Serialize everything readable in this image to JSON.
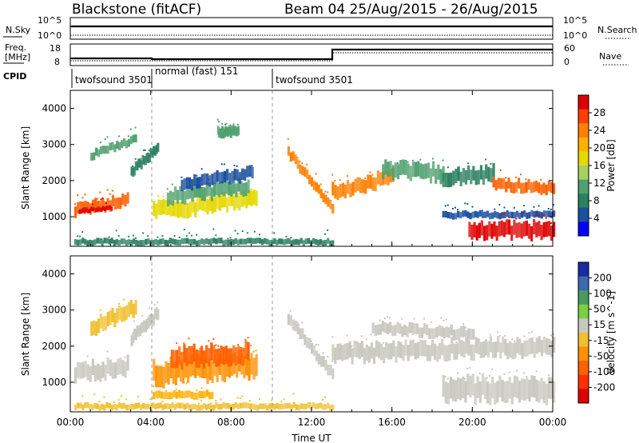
{
  "header": {
    "station": "Blackstone (fitACF)",
    "beam_dates": "Beam 04   25/Aug/2015 - 26/Aug/2015"
  },
  "noise_panel": {
    "left_label": "N.Sky",
    "right_label": "N.Search",
    "left_ticks": [
      "10^5",
      "10^0"
    ],
    "right_ticks": [
      "10^5",
      "10^0"
    ]
  },
  "freq_panel": {
    "left_label_1": "Freq.",
    "left_label_2": "[MHz]",
    "right_label": "Nave",
    "left_ticks": [
      "18",
      "8"
    ],
    "right_ticks": [
      "60",
      "0"
    ]
  },
  "cpid": {
    "label": "CPID",
    "segments": [
      {
        "name": "twofsound 3501",
        "start_hour": 0,
        "end_hour": 4
      },
      {
        "name": "normal (fast) 151",
        "start_hour": 4,
        "end_hour": 10
      },
      {
        "name": "twofsound 3501",
        "start_hour": 10,
        "end_hour": 24
      }
    ]
  },
  "colorbars": {
    "power": {
      "label": "Power [dB]",
      "ticks": [
        "28",
        "24",
        "20",
        "16",
        "12",
        "8",
        "4"
      ],
      "colors": [
        "#dd0000",
        "#ff4000",
        "#ff8000",
        "#ffb000",
        "#e6d800",
        "#a8d060",
        "#50a070",
        "#2a8060",
        "#1a4fa0",
        "#0000ff"
      ]
    },
    "velocity": {
      "label": "Velocity [m s^-1]",
      "ticks": [
        "200",
        "100",
        "50",
        "15",
        "-15",
        "-50",
        "-100",
        "-200"
      ],
      "colors": [
        "#1a2aa0",
        "#3a6ab0",
        "#4a9a60",
        "#7ad040",
        "#c8c8c0",
        "#f0c030",
        "#ff9000",
        "#ff6000",
        "#ff3000",
        "#e00000"
      ]
    }
  },
  "chart_data": [
    {
      "type": "heatmap",
      "title": "",
      "xlabel": "",
      "ylabel": "Slant Range [km]",
      "x_ticks": [
        "00:00",
        "04:00",
        "08:00",
        "12:00",
        "16:00",
        "20:00",
        "00:00"
      ],
      "xlim_hours": [
        0,
        24
      ],
      "ylim_km": [
        180,
        4500
      ],
      "y_ticks": [
        1000,
        2000,
        3000,
        4000
      ],
      "colorbar": "Power [dB]",
      "regions": [
        {
          "x": [
            0.2,
            2.8
          ],
          "y_center": [
            1200,
            1450
          ],
          "thick": 320,
          "color": "#ff6000"
        },
        {
          "x": [
            0.4,
            2.0
          ],
          "y_center": [
            1150,
            1250
          ],
          "thick": 120,
          "color": "#dd0000"
        },
        {
          "x": [
            1.0,
            3.2
          ],
          "y_center": [
            2700,
            3150
          ],
          "thick": 220,
          "color": "#50a070"
        },
        {
          "x": [
            3.0,
            4.3
          ],
          "y_center": [
            2250,
            2900
          ],
          "thick": 250,
          "color": "#2a8060"
        },
        {
          "x": [
            4.1,
            9.2
          ],
          "y_center": [
            1150,
            1500
          ],
          "thick": 420,
          "color": "#e6d800"
        },
        {
          "x": [
            4.8,
            8.8
          ],
          "y_center": [
            1550,
            1850
          ],
          "thick": 380,
          "color": "#50a070"
        },
        {
          "x": [
            5.5,
            9.0
          ],
          "y_center": [
            1900,
            2200
          ],
          "thick": 320,
          "color": "#1a4fa0"
        },
        {
          "x": [
            7.3,
            8.3
          ],
          "y_center": [
            3350,
            3350
          ],
          "thick": 250,
          "color": "#50a070"
        },
        {
          "x": [
            10.8,
            13.0
          ],
          "y_center": [
            2800,
            1200
          ],
          "thick": 260,
          "color": "#ff8000"
        },
        {
          "x": [
            13.0,
            16.0
          ],
          "y_center": [
            1700,
            2100
          ],
          "thick": 380,
          "color": "#ff8000"
        },
        {
          "x": [
            15.5,
            18.5
          ],
          "y_center": [
            2350,
            2200
          ],
          "thick": 420,
          "color": "#50a070"
        },
        {
          "x": [
            18.5,
            21.0
          ],
          "y_center": [
            2100,
            2200
          ],
          "thick": 400,
          "color": "#2a8060"
        },
        {
          "x": [
            21.0,
            24.0
          ],
          "y_center": [
            1900,
            1800
          ],
          "thick": 300,
          "color": "#ff6000"
        },
        {
          "x": [
            18.5,
            24.0
          ],
          "y_center": [
            1050,
            1050
          ],
          "thick": 180,
          "color": "#1a4fa0"
        },
        {
          "x": [
            19.8,
            24.0
          ],
          "y_center": [
            620,
            620
          ],
          "thick": 420,
          "color": "#dd0000"
        },
        {
          "x": [
            0.2,
            13.0
          ],
          "y_center": [
            300,
            300
          ],
          "thick": 160,
          "color": "#2a8060"
        }
      ]
    },
    {
      "type": "heatmap",
      "title": "",
      "xlabel": "Time UT",
      "ylabel": "Slant Range [km]",
      "x_ticks": [
        "00:00",
        "04:00",
        "08:00",
        "12:00",
        "16:00",
        "20:00",
        "00:00"
      ],
      "xlim_hours": [
        0,
        24
      ],
      "ylim_km": [
        180,
        4500
      ],
      "y_ticks": [
        1000,
        2000,
        3000,
        4000
      ],
      "colorbar": "Velocity [m s^-1]",
      "regions": [
        {
          "x": [
            0.2,
            2.8
          ],
          "y_center": [
            1250,
            1450
          ],
          "thick": 450,
          "color": "#c8c8c0"
        },
        {
          "x": [
            1.0,
            3.2
          ],
          "y_center": [
            2500,
            3100
          ],
          "thick": 400,
          "color": "#f0c030"
        },
        {
          "x": [
            3.0,
            4.3
          ],
          "y_center": [
            2200,
            2900
          ],
          "thick": 300,
          "color": "#c8c8c0"
        },
        {
          "x": [
            4.1,
            9.2
          ],
          "y_center": [
            1250,
            1500
          ],
          "thick": 600,
          "color": "#ff9000"
        },
        {
          "x": [
            5.0,
            8.8
          ],
          "y_center": [
            1700,
            1800
          ],
          "thick": 500,
          "color": "#ff6000"
        },
        {
          "x": [
            4.1,
            7.0
          ],
          "y_center": [
            650,
            650
          ],
          "thick": 200,
          "color": "#ffb000"
        },
        {
          "x": [
            10.8,
            13.0
          ],
          "y_center": [
            2800,
            1200
          ],
          "thick": 300,
          "color": "#c8c8c0"
        },
        {
          "x": [
            13.0,
            24.0
          ],
          "y_center": [
            1800,
            2000
          ],
          "thick": 450,
          "color": "#c8c8c0"
        },
        {
          "x": [
            15.0,
            20.0
          ],
          "y_center": [
            2500,
            2350
          ],
          "thick": 300,
          "color": "#c8c8c0"
        },
        {
          "x": [
            18.5,
            24.0
          ],
          "y_center": [
            800,
            800
          ],
          "thick": 600,
          "color": "#c8c8c0"
        },
        {
          "x": [
            0.2,
            13.0
          ],
          "y_center": [
            330,
            330
          ],
          "thick": 160,
          "color": "#f0c030"
        }
      ]
    }
  ]
}
